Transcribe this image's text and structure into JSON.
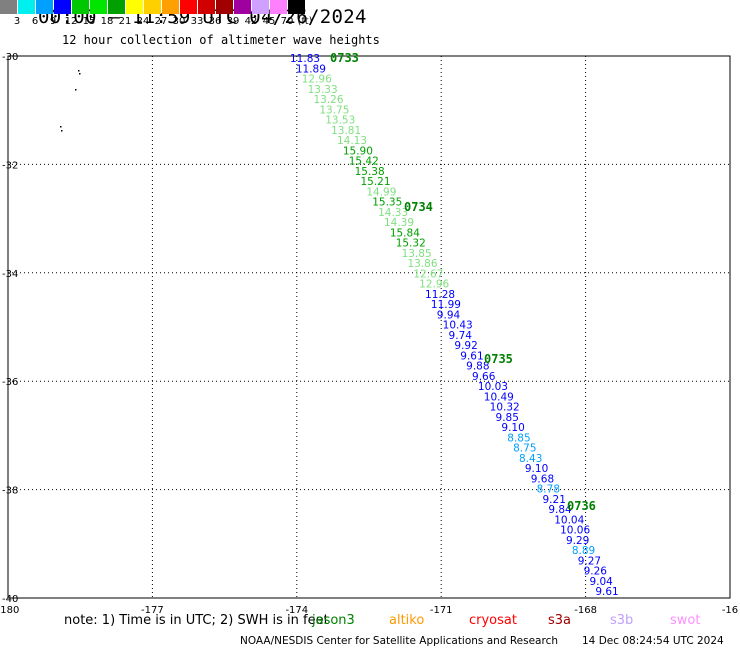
{
  "header": {
    "title": "00:00 – 11:59 UTC 04/26/2024",
    "subtitle": "12 hour collection of altimeter wave heights"
  },
  "color_scale": {
    "colors": [
      "#808080",
      "#00f0f0",
      "#00a0ff",
      "#0000ff",
      "#00c800",
      "#00e600",
      "#00a000",
      "#ffff00",
      "#ffd000",
      "#ffa000",
      "#ff0000",
      "#d00000",
      "#a00000",
      "#a000a0",
      "#d0a0ff",
      "#ff80ff",
      "#000000"
    ],
    "labels": [
      "3",
      "6",
      "9",
      "12",
      "15",
      "18",
      "21",
      "24",
      "27",
      "30",
      "33",
      "36",
      "39",
      "42",
      "45",
      "70",
      "(ft)"
    ]
  },
  "axes": {
    "lon_ticks": [
      "-180",
      "-177",
      "-174",
      "-171",
      "-168",
      "-16"
    ],
    "lat_ticks": [
      "-30",
      "-32",
      "-34",
      "-36",
      "-38",
      "-40"
    ]
  },
  "track": {
    "times": [
      {
        "label": "0733",
        "lat": -30.15,
        "lon": -173.55
      },
      {
        "label": "0734",
        "lat": -33.7,
        "lon": -172.5
      },
      {
        "label": "0735",
        "lat": -36.65,
        "lon": -170.0
      },
      {
        "label": "0736",
        "lat": -39.55,
        "lon": -168.5
      }
    ],
    "points": [
      {
        "v": "11.83",
        "c": "#0000ff",
        "lat": -30.15,
        "lon": -174.25
      },
      {
        "v": "11.89",
        "c": "#0000ff",
        "lat": -30.37,
        "lon": -174.15
      },
      {
        "v": "12.96",
        "c": "#80e080",
        "lat": -30.6,
        "lon": -174.05
      },
      {
        "v": "13.33",
        "c": "#80e080",
        "lat": -30.82,
        "lon": -173.95
      },
      {
        "v": "13.26",
        "c": "#80e080",
        "lat": -31.05,
        "lon": -173.85
      },
      {
        "v": "13.75",
        "c": "#80e080",
        "lat": -31.27,
        "lon": -173.75
      },
      {
        "v": "13.53",
        "c": "#80e080",
        "lat": -31.5,
        "lon": -173.65
      },
      {
        "v": "13.81",
        "c": "#80e080",
        "lat": -31.72,
        "lon": -173.55
      },
      {
        "v": "14.13",
        "c": "#80e080",
        "lat": -31.95,
        "lon": -173.45
      },
      {
        "v": "15.90",
        "c": "#00a000",
        "lat": -32.17,
        "lon": -173.35
      },
      {
        "v": "15.42",
        "c": "#00a000",
        "lat": -32.4,
        "lon": -173.25
      },
      {
        "v": "15.38",
        "c": "#00a000",
        "lat": -32.62,
        "lon": -173.15
      },
      {
        "v": "15.21",
        "c": "#00a000",
        "lat": -32.85,
        "lon": -173.05
      },
      {
        "v": "14.99",
        "c": "#80e080",
        "lat": -33.07,
        "lon": -172.95
      },
      {
        "v": "15.35",
        "c": "#00a000",
        "lat": -33.3,
        "lon": -172.85
      },
      {
        "v": "14.33",
        "c": "#80e080",
        "lat": -33.52,
        "lon": -172.75
      },
      {
        "v": "14.39",
        "c": "#80e080",
        "lat": -33.75,
        "lon": -172.65
      },
      {
        "v": "15.84",
        "c": "#00a000",
        "lat": -33.97,
        "lon": -172.55
      },
      {
        "v": "15.32",
        "c": "#00a000",
        "lat": -34.2,
        "lon": -172.45
      },
      {
        "v": "13.85",
        "c": "#80e080",
        "lat": -34.42,
        "lon": -172.35
      },
      {
        "v": "13.86",
        "c": "#80e080",
        "lat": -34.65,
        "lon": -172.25
      },
      {
        "v": "12.67",
        "c": "#80e080",
        "lat": -34.87,
        "lon": -172.15
      },
      {
        "v": "12.96",
        "c": "#80e080",
        "lat": -35.1,
        "lon": -172.05
      },
      {
        "v": "11.28",
        "c": "#0000ff",
        "lat": -35.32,
        "lon": -171.95
      },
      {
        "v": "11.99",
        "c": "#0000ff",
        "lat": -35.55,
        "lon": -171.85
      },
      {
        "v": "9.94",
        "c": "#0000ff",
        "lat": -35.77,
        "lon": -171.75
      },
      {
        "v": "10.43",
        "c": "#0000ff",
        "lat": -36.0,
        "lon": -171.65
      },
      {
        "v": "9.74",
        "c": "#0000ff",
        "lat": -36.22,
        "lon": -171.55
      },
      {
        "v": "9.92",
        "c": "#0000ff",
        "lat": -36.45,
        "lon": -171.45
      },
      {
        "v": "9.61",
        "c": "#0000ff",
        "lat": -36.67,
        "lon": -171.35
      },
      {
        "v": "9.88",
        "c": "#0000ff",
        "lat": -36.9,
        "lon": -171.25
      },
      {
        "v": "9.66",
        "c": "#0000ff",
        "lat": -37.12,
        "lon": -171.15
      },
      {
        "v": "10.03",
        "c": "#0000ff",
        "lat": -37.35,
        "lon": -171.05
      },
      {
        "v": "10.49",
        "c": "#0000ff",
        "lat": -37.57,
        "lon": -170.95
      },
      {
        "v": "10.32",
        "c": "#0000ff",
        "lat": -37.8,
        "lon": -170.85
      },
      {
        "v": "9.85",
        "c": "#0000ff",
        "lat": -38.02,
        "lon": -170.75
      },
      {
        "v": "9.10",
        "c": "#0000ff",
        "lat": -38.25,
        "lon": -170.65
      },
      {
        "v": "8.85",
        "c": "#00a0ff",
        "lat": -38.47,
        "lon": -170.55
      },
      {
        "v": "8.75",
        "c": "#00a0ff",
        "lat": -38.7,
        "lon": -170.45
      },
      {
        "v": "8.43",
        "c": "#00a0ff",
        "lat": -38.92,
        "lon": -170.35
      },
      {
        "v": "9.10",
        "c": "#0000ff",
        "lat": -39.15,
        "lon": -170.25
      },
      {
        "v": "9.68",
        "c": "#0000ff",
        "lat": -39.37,
        "lon": -170.15
      },
      {
        "v": "8.78",
        "c": "#00a0ff",
        "lat": -39.6,
        "lon": -170.05
      },
      {
        "v": "9.21",
        "c": "#0000ff",
        "lat": -39.82,
        "lon": -169.95
      },
      {
        "v": "9.84",
        "c": "#0000ff",
        "lat": -40.05,
        "lon": -169.85
      },
      {
        "v": "10.04",
        "c": "#0000ff",
        "lat": -40.27,
        "lon": -169.75
      },
      {
        "v": "10.06",
        "c": "#0000ff",
        "lat": -40.5,
        "lon": -169.65
      },
      {
        "v": "9.29",
        "c": "#0000ff",
        "lat": -40.72,
        "lon": -169.55
      },
      {
        "v": "8.89",
        "c": "#00a0ff",
        "lat": -40.95,
        "lon": -169.45
      },
      {
        "v": "9.27",
        "c": "#0000ff",
        "lat": -41.17,
        "lon": -169.35
      },
      {
        "v": "9.26",
        "c": "#0000ff",
        "lat": -41.4,
        "lon": -169.25
      },
      {
        "v": "9.04",
        "c": "#0000ff",
        "lat": -41.62,
        "lon": -169.15
      },
      {
        "v": "9.61",
        "c": "#0000ff",
        "lat": -41.85,
        "lon": -169.05
      }
    ]
  },
  "footer": {
    "note": "note:  1) Time is in UTC;  2) SWH is in feet",
    "satellites": [
      {
        "name": "jason3",
        "color": "#008000"
      },
      {
        "name": "altiko",
        "color": "#ff9900"
      },
      {
        "name": "cryosat",
        "color": "#ff0000"
      },
      {
        "name": "s3a",
        "color": "#a00000"
      },
      {
        "name": "s3b",
        "color": "#c0a0ff"
      },
      {
        "name": "swot",
        "color": "#ff90ff"
      }
    ],
    "credit": "NOAA/NESDIS Center for Satellite Applications and Research",
    "timestamp": "14 Dec 08:24:54 UTC 2024"
  }
}
